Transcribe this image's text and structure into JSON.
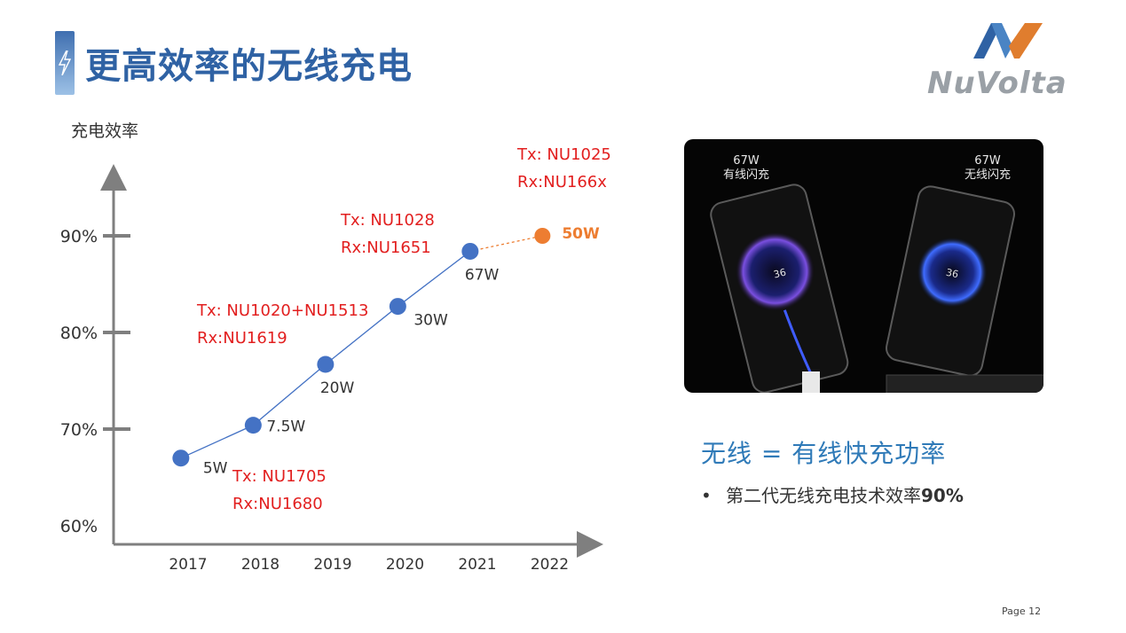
{
  "title": "更高效率的无线充电",
  "logo": {
    "text": "NuVolta"
  },
  "chart_data": {
    "type": "line",
    "ylabel": "充电效率",
    "yticks": [
      {
        "value": 60,
        "label": "60%"
      },
      {
        "value": 70,
        "label": "70%"
      },
      {
        "value": 80,
        "label": "80%"
      },
      {
        "value": 90,
        "label": "90%"
      }
    ],
    "ylim": [
      60,
      97
    ],
    "categories": [
      "2017",
      "2018",
      "2019",
      "2020",
      "2021",
      "2022"
    ],
    "points": [
      {
        "year": "2017",
        "x": 2016.9,
        "y": 67.0,
        "power": "5W",
        "status": "actual"
      },
      {
        "year": "2018",
        "x": 2017.9,
        "y": 70.4,
        "power": "7.5W",
        "status": "actual"
      },
      {
        "year": "2019",
        "x": 2018.9,
        "y": 76.7,
        "power": "20W",
        "status": "actual"
      },
      {
        "year": "2020",
        "x": 2019.9,
        "y": 82.7,
        "power": "30W",
        "status": "actual"
      },
      {
        "year": "2021",
        "x": 2020.9,
        "y": 88.4,
        "power": "67W",
        "status": "actual"
      },
      {
        "year": "2022",
        "x": 2021.9,
        "y": 90.0,
        "power": "50W",
        "status": "future"
      }
    ],
    "annotations": [
      {
        "tx": "Tx: NU1705",
        "rx": "Rx:NU1680"
      },
      {
        "tx": "Tx: NU1020+NU1513",
        "rx": "Rx:NU1619"
      },
      {
        "tx": "Tx: NU1028",
        "rx": "Rx:NU1651"
      },
      {
        "tx": "Tx: NU1025",
        "rx": "Rx:NU166x"
      }
    ],
    "colors": {
      "actual": "#4472c4",
      "future": "#ed7d31",
      "annotation": "#e21f1f",
      "axis": "#595959"
    },
    "grid": false
  },
  "photo": {
    "left_label_1": "67W",
    "left_label_2": "有线闪充",
    "right_label_1": "67W",
    "right_label_2": "无线闪充",
    "screen_text": "36"
  },
  "headline": "无线 = 有线快充功率",
  "bullet": {
    "marker": "•",
    "text": "第二代无线充电技术效率",
    "highlight": "90%"
  },
  "page_number": "Page 12"
}
